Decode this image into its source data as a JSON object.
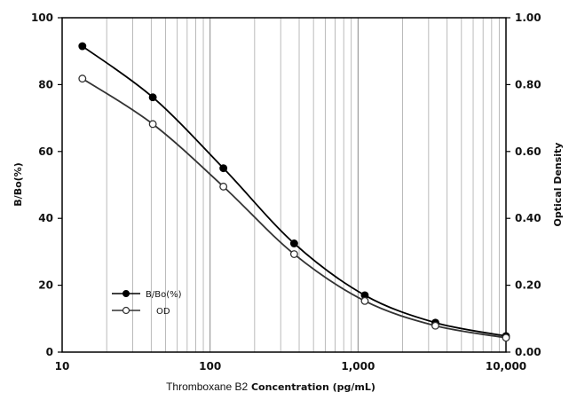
{
  "chart_data": {
    "type": "line",
    "xlabel_part1": "Thromboxane B2",
    "xlabel_part2": "Concentration (pg/mL)",
    "ylabel": "B/Bo(%)",
    "y2label": "Optical Density",
    "xscale": "log",
    "xlim": [
      10,
      10000
    ],
    "ylim": [
      0,
      100
    ],
    "y2lim": [
      0,
      1.0
    ],
    "grid": "vertical",
    "x_ticks": [
      10,
      100,
      1000,
      10000
    ],
    "x_tick_labels": [
      "10",
      "100",
      "1,000",
      "10,000"
    ],
    "y_ticks": [
      0,
      20,
      40,
      60,
      80,
      100
    ],
    "y_tick_labels": [
      "0",
      "20",
      "40",
      "60",
      "80",
      "100"
    ],
    "y2_ticks": [
      0,
      0.2,
      0.4,
      0.6,
      0.8,
      1.0
    ],
    "y2_tick_labels": [
      "0.00",
      "0.20",
      "0.40",
      "0.60",
      "0.80",
      "1.00"
    ],
    "x": [
      13.7,
      41,
      123,
      370,
      1111,
      3333,
      10000
    ],
    "series": [
      {
        "name": "B/Bo(%)",
        "axis": "left",
        "marker": "filled-circle",
        "color": "#000000",
        "values": [
          91.5,
          76.2,
          55.0,
          32.5,
          17.0,
          8.8,
          4.8
        ]
      },
      {
        "name": "OD",
        "axis": "right",
        "marker": "open-circle",
        "color": "#333333",
        "values": [
          0.818,
          0.682,
          0.495,
          0.293,
          0.153,
          0.079,
          0.043
        ]
      }
    ],
    "legend_position": "bottom-left"
  }
}
